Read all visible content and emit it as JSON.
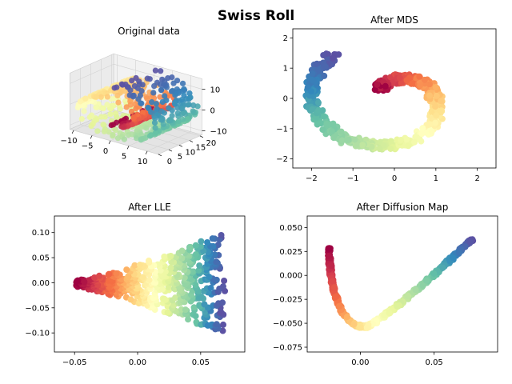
{
  "figure": {
    "title": "Swiss Roll"
  },
  "colormap": [
    "#9e0142",
    "#d53e4f",
    "#f46d43",
    "#fdae61",
    "#fee08b",
    "#ffffbf",
    "#e6f598",
    "#abdda4",
    "#66c2a5",
    "#3288bd",
    "#5e4fa2"
  ],
  "chart_data": [
    {
      "id": "original",
      "type": "scatter",
      "projection": "3d",
      "title": "Original data",
      "x_ticks": [
        "−10",
        "−5",
        "0",
        "5",
        "10"
      ],
      "y_ticks": [
        "0",
        "5",
        "10",
        "15",
        "20"
      ],
      "z_ticks": [
        "−10",
        "0",
        "10"
      ],
      "xlim": [
        -11,
        13
      ],
      "ylim": [
        0,
        21
      ],
      "zlim": [
        -12,
        15
      ],
      "grid": true,
      "point_count": 600
    },
    {
      "id": "mds",
      "type": "scatter",
      "title": "After MDS",
      "xlim": [
        -2.45,
        2.45
      ],
      "ylim": [
        -2.3,
        2.3
      ],
      "x_ticks": [
        -2,
        -1,
        0,
        1,
        2
      ],
      "y_ticks": [
        -2,
        -1,
        0,
        1,
        2
      ],
      "x_tick_labels": [
        "−2",
        "−1",
        "0",
        "1",
        "2"
      ],
      "y_tick_labels": [
        "−2",
        "−1",
        "0",
        "1",
        "2"
      ],
      "grid": false,
      "point_count": 600
    },
    {
      "id": "lle",
      "type": "scatter",
      "title": "After LLE",
      "xlim": [
        -0.066,
        0.085
      ],
      "ylim": [
        -0.138,
        0.133
      ],
      "x_ticks": [
        -0.05,
        0.0,
        0.05
      ],
      "y_ticks": [
        -0.1,
        -0.05,
        0.0,
        0.05,
        0.1
      ],
      "x_tick_labels": [
        "−0.05",
        "0.00",
        "0.05"
      ],
      "y_tick_labels": [
        "−0.10",
        "−0.05",
        "0.00",
        "0.05",
        "0.10"
      ],
      "grid": false,
      "point_count": 600
    },
    {
      "id": "diffusion",
      "type": "scatter",
      "title": "After Diffusion Map",
      "xlim": [
        -0.036,
        0.093
      ],
      "ylim": [
        -0.08,
        0.062
      ],
      "x_ticks": [
        0.0,
        0.05
      ],
      "y_ticks": [
        -0.075,
        -0.05,
        -0.025,
        0.0,
        0.025,
        0.05
      ],
      "x_tick_labels": [
        "0.00",
        "0.05"
      ],
      "y_tick_labels": [
        "−0.075",
        "−0.050",
        "−0.025",
        "0.000",
        "0.025",
        "0.050"
      ],
      "grid": false,
      "point_count": 600
    }
  ]
}
